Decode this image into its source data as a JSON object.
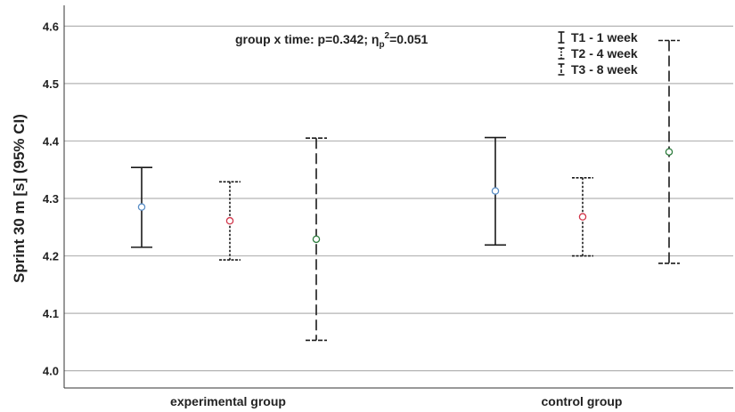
{
  "chart_data": {
    "type": "errorbar",
    "ylabel": "Sprint 30 m [s] (95% CI)",
    "ylim": [
      3.97,
      4.63
    ],
    "yticks": [
      "4.0",
      "4.1",
      "4.2",
      "4.3",
      "4.4",
      "4.5",
      "4.6"
    ],
    "grid": true,
    "categories": [
      "experimental group",
      "control group"
    ],
    "annotation": {
      "prefix": "group x time: p=0.342; η",
      "sub": "p",
      "sup": "2",
      "suffix": "=0.051"
    },
    "legend_position": "top-right",
    "series": [
      {
        "name": "T1 - 1 week",
        "color": "#5b8fc7",
        "dash": "solid",
        "means": [
          4.285,
          4.313
        ],
        "lower": [
          4.215,
          4.219
        ],
        "upper": [
          4.354,
          4.406
        ]
      },
      {
        "name": "T2 - 4 week",
        "color": "#d1364a",
        "dash": "dotted",
        "means": [
          4.261,
          4.268
        ],
        "lower": [
          4.193,
          4.2
        ],
        "upper": [
          4.329,
          4.336
        ]
      },
      {
        "name": "T3 - 8 week",
        "color": "#2e7d3e",
        "dash": "dashed",
        "means": [
          4.229,
          4.381
        ],
        "lower": [
          4.053,
          4.187
        ],
        "upper": [
          4.405,
          4.575
        ]
      }
    ]
  }
}
